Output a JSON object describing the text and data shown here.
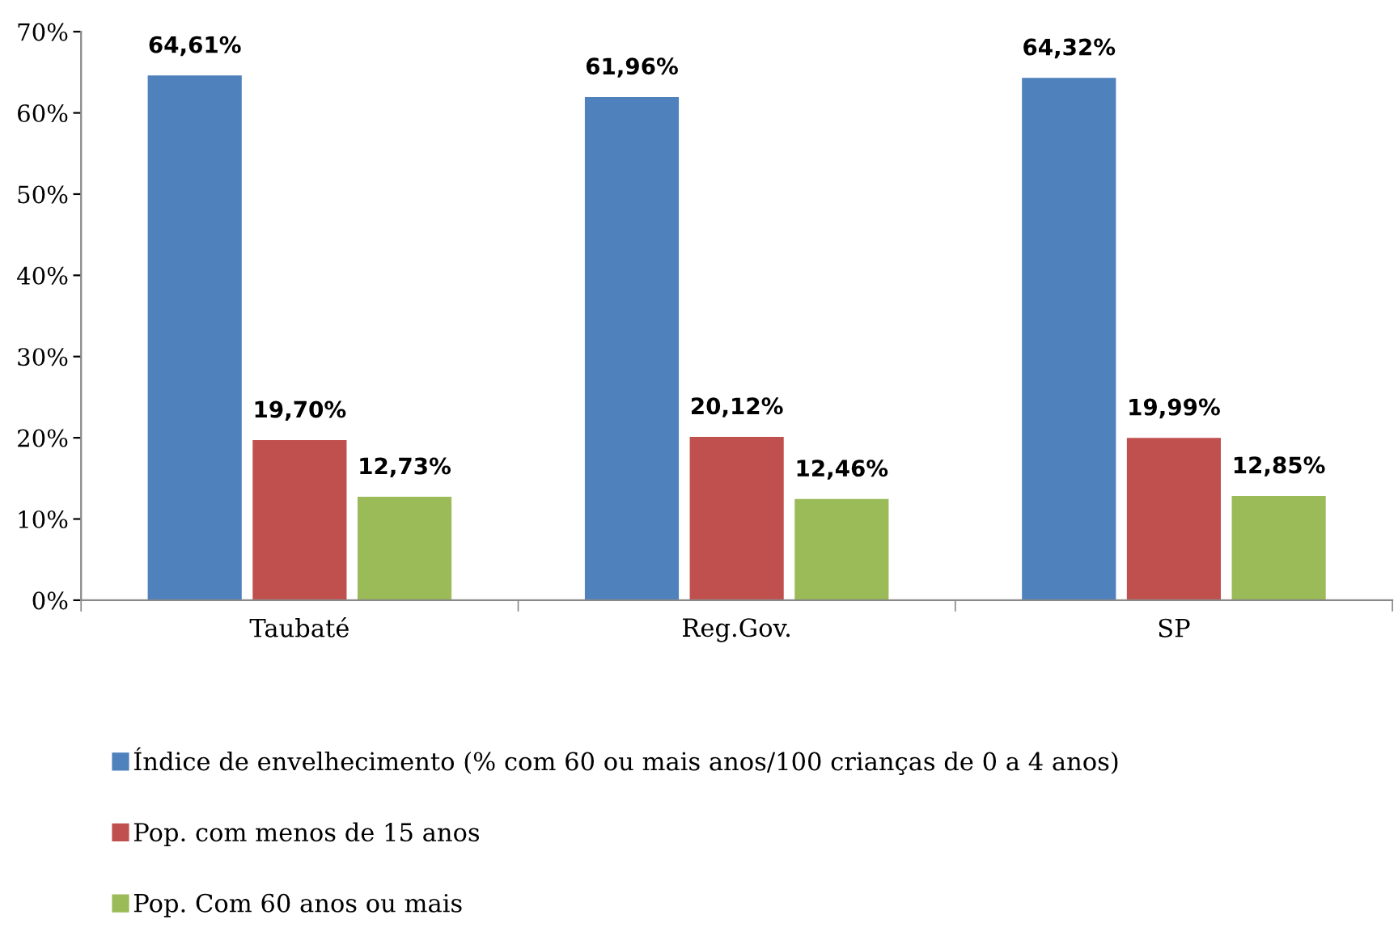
{
  "chart_data": {
    "type": "bar",
    "categories": [
      "Taubaté",
      "Reg.Gov.",
      "SP"
    ],
    "series": [
      {
        "name": "Índice de envelhecimento (% com 60 ou mais anos/100 crianças de 0 a 4 anos)",
        "color": "#4f81bd",
        "values": [
          64.61,
          61.96,
          64.32
        ],
        "value_labels": [
          "64,61%",
          "61,96%",
          "64,32%"
        ]
      },
      {
        "name": "Pop. com menos de 15 anos",
        "color": "#c0504d",
        "values": [
          19.7,
          20.12,
          19.99
        ],
        "value_labels": [
          "19,70%",
          "20,12%",
          "19,99%"
        ]
      },
      {
        "name": "Pop. Com 60 anos ou mais",
        "color": "#9bbb59",
        "values": [
          12.73,
          12.46,
          12.85
        ],
        "value_labels": [
          "12,73%",
          "12,46%",
          "12,85%"
        ]
      }
    ],
    "ylim": [
      0,
      70
    ],
    "yticks": [
      {
        "value": 0,
        "label": "0%"
      },
      {
        "value": 10,
        "label": "10%"
      },
      {
        "value": 20,
        "label": "20%"
      },
      {
        "value": 30,
        "label": "30%"
      },
      {
        "value": 40,
        "label": "40%"
      },
      {
        "value": 50,
        "label": "50%"
      },
      {
        "value": 60,
        "label": "60%"
      },
      {
        "value": 70,
        "label": "70%"
      }
    ],
    "grid": false,
    "legend": "bottom"
  }
}
